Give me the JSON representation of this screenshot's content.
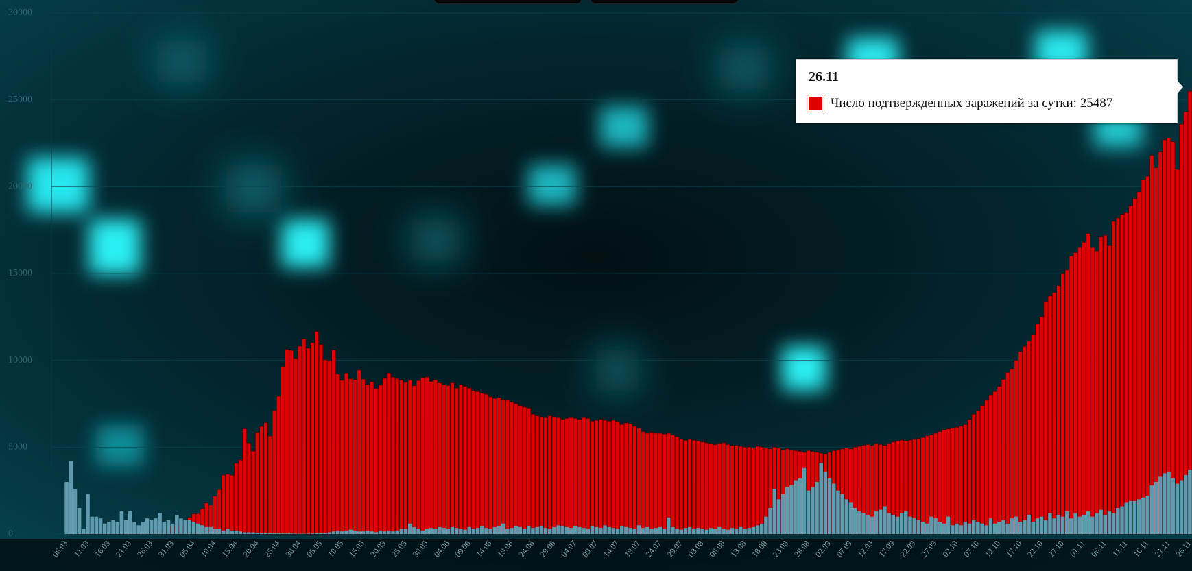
{
  "chart_data": {
    "type": "bar",
    "ylim": [
      0,
      30000
    ],
    "yticks": [
      0,
      5000,
      10000,
      15000,
      20000,
      25000,
      30000
    ],
    "grid": true,
    "categories": [
      "06.03",
      null,
      null,
      null,
      null,
      "11.03",
      null,
      null,
      null,
      null,
      "16.03",
      null,
      null,
      null,
      null,
      "21.03",
      null,
      null,
      null,
      null,
      "26.03",
      null,
      null,
      null,
      null,
      "31.03",
      null,
      null,
      null,
      null,
      "05.04",
      null,
      null,
      null,
      null,
      "10.04",
      null,
      null,
      null,
      null,
      "15.04",
      null,
      null,
      null,
      null,
      "20.04",
      null,
      null,
      null,
      null,
      "25.04",
      null,
      null,
      null,
      null,
      "30.04",
      null,
      null,
      null,
      null,
      "05.05",
      null,
      null,
      null,
      null,
      "10.05",
      null,
      null,
      null,
      null,
      "15.05",
      null,
      null,
      null,
      null,
      "20.05",
      null,
      null,
      null,
      null,
      "25.05",
      null,
      null,
      null,
      null,
      "30.05",
      null,
      null,
      null,
      null,
      "04.06",
      null,
      null,
      null,
      null,
      "09.06",
      null,
      null,
      null,
      null,
      "14.06",
      null,
      null,
      null,
      null,
      "19.06",
      null,
      null,
      null,
      null,
      "24.06",
      null,
      null,
      null,
      null,
      "29.06",
      null,
      null,
      null,
      null,
      "04.07",
      null,
      null,
      null,
      null,
      "09.07",
      null,
      null,
      null,
      null,
      "14.07",
      null,
      null,
      null,
      null,
      "19.07",
      null,
      null,
      null,
      null,
      "24.07",
      null,
      null,
      null,
      null,
      "29.07",
      null,
      null,
      null,
      null,
      "03.08",
      null,
      null,
      null,
      null,
      "08.08",
      null,
      null,
      null,
      null,
      "13.08",
      null,
      null,
      null,
      null,
      "18.08",
      null,
      null,
      null,
      null,
      "23.08",
      null,
      null,
      null,
      null,
      "28.08",
      null,
      null,
      null,
      null,
      "02.09",
      null,
      null,
      null,
      null,
      "07.09",
      null,
      null,
      null,
      null,
      "12.09",
      null,
      null,
      null,
      null,
      "17.09",
      null,
      null,
      null,
      null,
      "22.09",
      null,
      null,
      null,
      null,
      "27.09",
      null,
      null,
      null,
      null,
      "02.10",
      null,
      null,
      null,
      null,
      "07.10",
      null,
      null,
      null,
      null,
      "12.10",
      null,
      null,
      null,
      null,
      "17.10",
      null,
      null,
      null,
      null,
      "22.10",
      null,
      null,
      null,
      null,
      "27.10",
      null,
      null,
      null,
      null,
      "01.11",
      null,
      null,
      null,
      null,
      "06.11",
      null,
      null,
      null,
      null,
      "11.11",
      null,
      null,
      null,
      null,
      "16.11",
      null,
      null,
      null,
      null,
      "21.11",
      null,
      null,
      null,
      null,
      "26.11"
    ],
    "series": [
      {
        "name": "Число подтвержденных заражений за сутки",
        "color": "#e00000",
        "values": [
          0,
          3,
          0,
          7,
          3,
          6,
          8,
          14,
          17,
          10,
          33,
          9,
          40,
          28,
          54,
          53,
          52,
          71,
          57,
          163,
          182,
          196,
          228,
          270,
          302,
          440,
          501,
          582,
          771,
          954,
          1154,
          1175,
          1459,
          1786,
          1667,
          2186,
          2558,
          3388,
          3448,
          3388,
          4070,
          4268,
          6060,
          5236,
          4774,
          5849,
          6198,
          6411,
          5642,
          7099,
          7933,
          9623,
          10633,
          10581,
          10102,
          10817,
          11231,
          10699,
          11012,
          11656,
          10899,
          10028,
          9974,
          10598,
          9200,
          8849,
          9263,
          8926,
          8894,
          9434,
          8915,
          8599,
          8764,
          8371,
          8572,
          8952,
          9268,
          9035,
          8952,
          8863,
          8726,
          8855,
          8536,
          8831,
          8985,
          9035,
          8779,
          8868,
          8700,
          8600,
          8550,
          8700,
          8400,
          8600,
          8500,
          8400,
          8250,
          8200,
          8100,
          8050,
          7900,
          7800,
          7850,
          7750,
          7700,
          7600,
          7500,
          7400,
          7300,
          7250,
          6900,
          6800,
          6750,
          6700,
          6800,
          6750,
          6700,
          6600,
          6650,
          6700,
          6650,
          6600,
          6700,
          6650,
          6500,
          6550,
          6600,
          6550,
          6500,
          6550,
          6450,
          6300,
          6400,
          6350,
          6200,
          6100,
          5900,
          5800,
          5850,
          5800,
          5800,
          5750,
          5800,
          5700,
          5600,
          5450,
          5400,
          5450,
          5400,
          5350,
          5300,
          5250,
          5200,
          5150,
          5200,
          5250,
          5150,
          5100,
          5100,
          5050,
          5000,
          5000,
          4950,
          5050,
          5000,
          4950,
          4900,
          5000,
          4950,
          4850,
          4900,
          4850,
          4800,
          4750,
          4700,
          4800,
          4750,
          4700,
          4650,
          4600,
          4700,
          4800,
          4850,
          4900,
          4950,
          4900,
          5000,
          5050,
          5100,
          5150,
          5100,
          5200,
          5150,
          5100,
          5200,
          5300,
          5350,
          5400,
          5350,
          5400,
          5450,
          5500,
          5550,
          5650,
          5700,
          5800,
          5900,
          6000,
          6050,
          6100,
          6150,
          6200,
          6300,
          6600,
          6900,
          7100,
          7400,
          7700,
          8000,
          8200,
          8500,
          8900,
          9300,
          9500,
          10000,
          10500,
          10800,
          11100,
          11500,
          12100,
          12500,
          13400,
          13700,
          13900,
          14300,
          15000,
          15200,
          16000,
          16200,
          16500,
          16800,
          17300,
          16500,
          16300,
          17100,
          17200,
          16600,
          18000,
          18200,
          18400,
          18500,
          18900,
          19300,
          19700,
          20400,
          20600,
          21800,
          21100,
          22000,
          22700,
          22800,
          22600,
          21000,
          23600,
          24300,
          25487
        ]
      },
      {
        "color": "#5f9aae",
        "values": [
          3000,
          4200,
          2600,
          1500,
          300,
          2300,
          1000,
          1000,
          900,
          600,
          700,
          800,
          700,
          1300,
          800,
          1300,
          700,
          500,
          700,
          900,
          800,
          900,
          1200,
          700,
          800,
          600,
          1100,
          900,
          800,
          800,
          700,
          600,
          500,
          400,
          400,
          300,
          300,
          200,
          300,
          200,
          200,
          150,
          100,
          100,
          100,
          80,
          60,
          50,
          50,
          40,
          40,
          30,
          30,
          30,
          20,
          20,
          20,
          20,
          30,
          50,
          50,
          80,
          100,
          150,
          200,
          150,
          200,
          250,
          200,
          150,
          150,
          200,
          150,
          100,
          200,
          150,
          200,
          150,
          200,
          300,
          300,
          600,
          400,
          300,
          200,
          300,
          350,
          300,
          400,
          350,
          300,
          400,
          350,
          300,
          250,
          400,
          300,
          350,
          450,
          350,
          300,
          400,
          450,
          600,
          300,
          350,
          450,
          400,
          300,
          450,
          350,
          400,
          450,
          350,
          300,
          400,
          500,
          450,
          400,
          350,
          450,
          400,
          350,
          300,
          450,
          400,
          350,
          500,
          400,
          350,
          300,
          450,
          400,
          350,
          300,
          500,
          350,
          400,
          300,
          350,
          400,
          300,
          950,
          400,
          300,
          250,
          350,
          400,
          300,
          350,
          300,
          250,
          350,
          300,
          400,
          300,
          250,
          350,
          300,
          400,
          300,
          350,
          400,
          500,
          600,
          1000,
          1500,
          2600,
          2000,
          2300,
          2700,
          2800,
          3100,
          3200,
          3800,
          2500,
          2700,
          3000,
          4100,
          3600,
          3200,
          2900,
          2500,
          2300,
          2000,
          1800,
          1500,
          1300,
          1200,
          1100,
          1000,
          1300,
          1400,
          1600,
          1200,
          1100,
          1000,
          1200,
          1300,
          1000,
          900,
          800,
          700,
          600,
          1000,
          900,
          700,
          600,
          1000,
          500,
          600,
          500,
          700,
          600,
          800,
          700,
          600,
          500,
          900,
          600,
          700,
          800,
          600,
          900,
          1000,
          700,
          800,
          1100,
          700,
          900,
          1000,
          800,
          1200,
          900,
          1100,
          1000,
          1300,
          900,
          1200,
          1000,
          1100,
          1300,
          1000,
          1200,
          1400,
          1100,
          1300,
          1200,
          1500,
          1600,
          1800,
          1900,
          1900,
          2000,
          2100,
          2200,
          2800,
          3000,
          3300,
          3500,
          3600,
          3200,
          2900,
          3100,
          3400,
          3700
        ]
      }
    ]
  }
}
